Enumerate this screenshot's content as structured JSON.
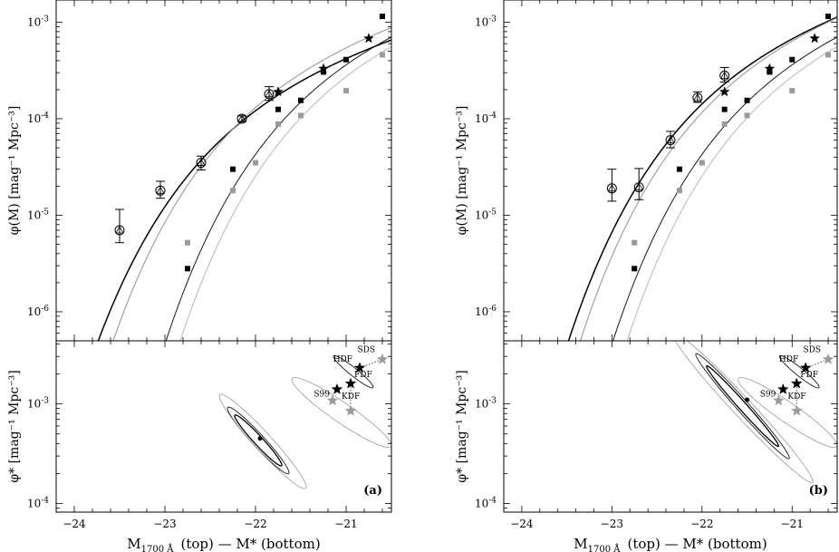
{
  "figure": {
    "xaxis_label": "M",
    "xaxis_label_sub": "1700 Å",
    "xaxis_label_rest": "(top)   —   M* (bottom)",
    "top_ylabel": "φ(M)   [mag⁻¹ Mpc⁻³]",
    "bottom_ylabel": "φ*   [mag⁻¹ Mpc⁻³]"
  },
  "colors": {
    "black": "#000000",
    "gray": "#9a9a9a",
    "light_gray": "#bdbdbd"
  },
  "chart_data": [
    {
      "panel": "a",
      "type": "scatter",
      "top": {
        "yscale": "log",
        "xlim": [
          -24.2,
          -20.5
        ],
        "ylim": [
          5e-07,
          0.0017
        ],
        "xticks": [
          -24,
          -23,
          -22,
          -21
        ],
        "yticks": [
          {
            "v": 1e-06,
            "label": "10",
            "exp": "-6"
          },
          {
            "v": 1e-05,
            "label": "10",
            "exp": "-5"
          },
          {
            "v": 0.0001,
            "label": "10",
            "exp": "-4"
          },
          {
            "v": 0.001,
            "label": "10",
            "exp": "-3"
          }
        ],
        "open_points": [
          {
            "x": -23.5,
            "y": 7e-06,
            "lo": 5.2e-06,
            "hi": 1.15e-05
          },
          {
            "x": -23.05,
            "y": 1.8e-05,
            "lo": 1.5e-05,
            "hi": 2.25e-05
          },
          {
            "x": -22.6,
            "y": 3.5e-05,
            "lo": 2.95e-05,
            "hi": 4.1e-05
          },
          {
            "x": -22.15,
            "y": 0.0001,
            "lo": 9.3e-05,
            "hi": 0.000107
          },
          {
            "x": -21.85,
            "y": 0.00018,
            "lo": 0.000155,
            "hi": 0.000215
          }
        ],
        "black_squares": [
          {
            "x": -22.75,
            "y": 2.8e-06
          },
          {
            "x": -22.25,
            "y": 3e-05
          },
          {
            "x": -21.75,
            "y": 0.000125
          },
          {
            "x": -21.5,
            "y": 0.000155
          },
          {
            "x": -21.25,
            "y": 0.000305
          },
          {
            "x": -21.0,
            "y": 0.00041
          },
          {
            "x": -20.6,
            "y": 0.00115
          }
        ],
        "gray_squares": [
          {
            "x": -22.75,
            "y": 5.2e-06
          },
          {
            "x": -22.25,
            "y": 1.8e-05
          },
          {
            "x": -22.0,
            "y": 3.5e-05
          },
          {
            "x": -21.75,
            "y": 8.8e-05
          },
          {
            "x": -21.5,
            "y": 0.000108
          },
          {
            "x": -21.0,
            "y": 0.000195
          },
          {
            "x": -20.6,
            "y": 0.00046
          }
        ],
        "stars": [
          {
            "x": -21.75,
            "y": 0.00019
          },
          {
            "x": -21.25,
            "y": 0.00033
          },
          {
            "x": -20.75,
            "y": 0.00068
          }
        ],
        "curves": [
          {
            "name": "fit-bright",
            "Mstar": -21.85,
            "phistar": 0.00045,
            "alpha": -1.6,
            "color": "#000000",
            "width": 1.5
          },
          {
            "name": "fit-bright-alt",
            "Mstar": -21.6,
            "phistar": 0.00075,
            "alpha": -1.6,
            "color": "#9a9a9a",
            "width": 1.1
          },
          {
            "name": "fit-faint",
            "Mstar": -20.95,
            "phistar": 0.00115,
            "alpha": -1.6,
            "color": "#000000",
            "width": 0.9
          },
          {
            "name": "fit-faint-alt",
            "Mstar": -20.8,
            "phistar": 0.0011,
            "alpha": -1.6,
            "color": "#bdbdbd",
            "width": 1.1
          }
        ]
      },
      "bottom": {
        "yscale": "log",
        "xlim": [
          -24.2,
          -20.5
        ],
        "ylim": [
          8.2e-05,
          0.0043
        ],
        "xticks": [
          -24,
          -23,
          -22,
          -21
        ],
        "yticks": [
          {
            "v": 0.0001,
            "label": "10",
            "exp": "-4"
          },
          {
            "v": 0.001,
            "label": "10",
            "exp": "-3"
          }
        ],
        "best_fit": {
          "x": -21.95,
          "y": 0.00045
        },
        "contours": [
          {
            "cx": -21.97,
            "cy": 0.00043,
            "semi_major_mag": 0.26,
            "dex_per_mag": 0.95,
            "width_dex": 0.065,
            "color": "#000000",
            "line": 1.3
          },
          {
            "cx": -21.97,
            "cy": 0.00043,
            "semi_major_mag": 0.34,
            "dex_per_mag": 0.95,
            "width_dex": 0.09,
            "color": "#000000",
            "line": 0.8
          },
          {
            "cx": -21.92,
            "cy": 0.00042,
            "semi_major_mag": 0.48,
            "dex_per_mag": 0.95,
            "width_dex": 0.13,
            "color": "#9a9a9a",
            "line": 0.8
          },
          {
            "cx": -21.05,
            "cy": 0.00082,
            "semi_major_mag": 0.55,
            "dex_per_mag": 0.6,
            "width_dex": 0.12,
            "color": "#9a9a9a",
            "line": 0.8
          },
          {
            "cx": -20.92,
            "cy": 0.0021,
            "semi_major_mag": 0.22,
            "dex_per_mag": 0.7,
            "width_dex": 0.05,
            "color": "#000000",
            "line": 0.8
          }
        ],
        "stars": [
          {
            "label": "HDF",
            "x": -20.85,
            "y": 0.0023,
            "color": "#000000"
          },
          {
            "label": "FDF",
            "x": -20.95,
            "y": 0.0016,
            "color": "#000000"
          },
          {
            "label": "SDS",
            "x": -20.6,
            "y": 0.0028,
            "color": "#9a9a9a"
          },
          {
            "label": "S99",
            "x": -21.1,
            "y": 0.0014,
            "color": "#000000"
          },
          {
            "label": "KDF",
            "x": -21.15,
            "y": 0.00108,
            "color": "#9a9a9a"
          },
          {
            "label": "",
            "x": -20.95,
            "y": 0.00085,
            "color": "#9a9a9a"
          }
        ],
        "panel_label": "(a)"
      }
    },
    {
      "panel": "b",
      "type": "scatter",
      "top": {
        "yscale": "log",
        "xlim": [
          -24.2,
          -20.5
        ],
        "ylim": [
          5e-07,
          0.0017
        ],
        "xticks": [
          -24,
          -23,
          -22,
          -21
        ],
        "yticks": [
          {
            "v": 1e-06,
            "label": "10",
            "exp": "-6"
          },
          {
            "v": 1e-05,
            "label": "10",
            "exp": "-5"
          },
          {
            "v": 0.0001,
            "label": "10",
            "exp": "-4"
          },
          {
            "v": 0.001,
            "label": "10",
            "exp": "-3"
          }
        ],
        "open_points": [
          {
            "x": -23.0,
            "y": 1.9e-05,
            "lo": 1.4e-05,
            "hi": 3e-05
          },
          {
            "x": -22.7,
            "y": 1.95e-05,
            "lo": 1.45e-05,
            "hi": 3.05e-05
          },
          {
            "x": -22.35,
            "y": 6e-05,
            "lo": 5e-05,
            "hi": 7.4e-05
          },
          {
            "x": -22.05,
            "y": 0.000165,
            "lo": 0.000148,
            "hi": 0.00019
          },
          {
            "x": -21.75,
            "y": 0.00028,
            "lo": 0.00024,
            "hi": 0.00034
          }
        ],
        "black_squares": [
          {
            "x": -22.75,
            "y": 2.8e-06
          },
          {
            "x": -22.25,
            "y": 3e-05
          },
          {
            "x": -21.75,
            "y": 0.000125
          },
          {
            "x": -21.5,
            "y": 0.000155
          },
          {
            "x": -21.25,
            "y": 0.000305
          },
          {
            "x": -21.0,
            "y": 0.00041
          },
          {
            "x": -20.6,
            "y": 0.00115
          }
        ],
        "gray_squares": [
          {
            "x": -22.75,
            "y": 5.2e-06
          },
          {
            "x": -22.25,
            "y": 1.8e-05
          },
          {
            "x": -22.0,
            "y": 3.5e-05
          },
          {
            "x": -21.75,
            "y": 8.8e-05
          },
          {
            "x": -21.5,
            "y": 0.000108
          },
          {
            "x": -21.0,
            "y": 0.000195
          },
          {
            "x": -20.6,
            "y": 0.00046
          }
        ],
        "stars": [
          {
            "x": -21.75,
            "y": 0.00019
          },
          {
            "x": -21.25,
            "y": 0.00033
          },
          {
            "x": -20.75,
            "y": 0.00068
          }
        ],
        "curves": [
          {
            "name": "fit-bright",
            "Mstar": -21.45,
            "phistar": 0.0011,
            "alpha": -1.6,
            "color": "#000000",
            "width": 1.5
          },
          {
            "name": "fit-bright-alt",
            "Mstar": -21.3,
            "phistar": 0.00125,
            "alpha": -1.6,
            "color": "#9a9a9a",
            "width": 1.1
          },
          {
            "name": "fit-faint",
            "Mstar": -20.95,
            "phistar": 0.00115,
            "alpha": -1.6,
            "color": "#000000",
            "width": 0.9
          },
          {
            "name": "fit-faint-alt",
            "Mstar": -20.8,
            "phistar": 0.0011,
            "alpha": -1.6,
            "color": "#bdbdbd",
            "width": 1.1
          }
        ]
      },
      "bottom": {
        "yscale": "log",
        "xlim": [
          -24.2,
          -20.5
        ],
        "ylim": [
          8.2e-05,
          0.0043
        ],
        "xticks": [
          -24,
          -23,
          -22,
          -21
        ],
        "yticks": [
          {
            "v": 0.0001,
            "label": "10",
            "exp": "-4"
          },
          {
            "v": 0.001,
            "label": "10",
            "exp": "-3"
          }
        ],
        "best_fit": {
          "x": -21.5,
          "y": 0.0011
        },
        "contours": [
          {
            "cx": -21.55,
            "cy": 0.00095,
            "semi_major_mag": 0.4,
            "dex_per_mag": 1.0,
            "width_dex": 0.06,
            "color": "#000000",
            "line": 1.3
          },
          {
            "cx": -21.55,
            "cy": 0.00095,
            "semi_major_mag": 0.52,
            "dex_per_mag": 1.0,
            "width_dex": 0.09,
            "color": "#000000",
            "line": 0.8
          },
          {
            "cx": -21.55,
            "cy": 0.00092,
            "semi_major_mag": 0.78,
            "dex_per_mag": 0.95,
            "width_dex": 0.14,
            "color": "#9a9a9a",
            "line": 0.8
          },
          {
            "cx": -21.05,
            "cy": 0.00082,
            "semi_major_mag": 0.55,
            "dex_per_mag": 0.6,
            "width_dex": 0.12,
            "color": "#9a9a9a",
            "line": 0.8
          },
          {
            "cx": -20.92,
            "cy": 0.0021,
            "semi_major_mag": 0.22,
            "dex_per_mag": 0.7,
            "width_dex": 0.05,
            "color": "#000000",
            "line": 0.8
          }
        ],
        "stars": [
          {
            "label": "HDF",
            "x": -20.85,
            "y": 0.0023,
            "color": "#000000"
          },
          {
            "label": "FDF",
            "x": -20.95,
            "y": 0.0016,
            "color": "#000000"
          },
          {
            "label": "SDS",
            "x": -20.6,
            "y": 0.0028,
            "color": "#9a9a9a"
          },
          {
            "label": "S99",
            "x": -21.1,
            "y": 0.0014,
            "color": "#000000"
          },
          {
            "label": "KDF",
            "x": -21.15,
            "y": 0.00108,
            "color": "#9a9a9a"
          },
          {
            "label": "",
            "x": -20.95,
            "y": 0.00085,
            "color": "#9a9a9a"
          }
        ],
        "panel_label": "(b)"
      }
    }
  ]
}
